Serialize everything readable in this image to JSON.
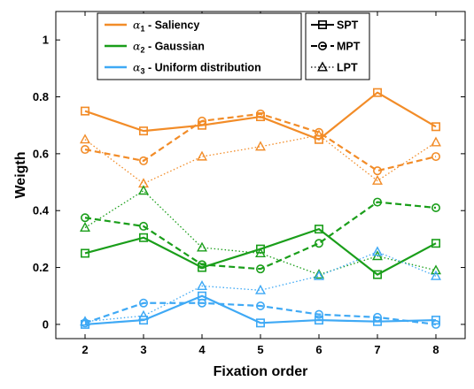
{
  "chart_data": {
    "type": "line",
    "title": "",
    "xlabel": "Fixation order",
    "ylabel": "Weigth",
    "x": [
      2,
      3,
      4,
      5,
      6,
      7,
      8
    ],
    "xlim": [
      1.5,
      8.5
    ],
    "ylim": [
      -0.05,
      1.1
    ],
    "x_ticks": [
      "2",
      "3",
      "4",
      "5",
      "6",
      "7",
      "8"
    ],
    "y_ticks": [
      {
        "value": 0,
        "label": "0"
      },
      {
        "value": 0.2,
        "label": "0.2"
      },
      {
        "value": 0.4,
        "label": "0.4"
      },
      {
        "value": 0.6,
        "label": "0.6"
      },
      {
        "value": 0.8,
        "label": "0.8"
      },
      {
        "value": 1,
        "label": "1"
      }
    ],
    "grid": false,
    "legend_alpha": {
      "placement": "top-left",
      "entries": [
        {
          "symbol": "α",
          "sub": "1",
          "text": " - Saliency",
          "color": "#F28C28"
        },
        {
          "symbol": "α",
          "sub": "2",
          "text": " - Gaussian",
          "color": "#1A9E1A"
        },
        {
          "symbol": "α",
          "sub": "3",
          "text": " - Uniform distribution",
          "color": "#3FA9F5"
        }
      ]
    },
    "legend_style": {
      "placement": "top-right",
      "entries": [
        {
          "label": "SPT",
          "dash": "solid",
          "marker": "square"
        },
        {
          "label": "MPT",
          "dash": "dashed",
          "marker": "circle"
        },
        {
          "label": "LPT",
          "dash": "dotted",
          "marker": "triangle"
        }
      ]
    },
    "series": [
      {
        "weight": "alpha1",
        "style": "SPT",
        "color": "#F28C28",
        "dash": "solid",
        "marker": "square",
        "values": [
          0.75,
          0.68,
          0.7,
          0.73,
          0.65,
          0.815,
          0.695
        ]
      },
      {
        "weight": "alpha1",
        "style": "MPT",
        "color": "#F28C28",
        "dash": "dashed",
        "marker": "circle",
        "values": [
          0.615,
          0.575,
          0.715,
          0.74,
          0.675,
          0.54,
          0.59
        ]
      },
      {
        "weight": "alpha1",
        "style": "LPT",
        "color": "#F28C28",
        "dash": "dotted",
        "marker": "triangle",
        "values": [
          0.65,
          0.495,
          0.59,
          0.625,
          0.665,
          0.505,
          0.64
        ]
      },
      {
        "weight": "alpha2",
        "style": "SPT",
        "color": "#1A9E1A",
        "dash": "solid",
        "marker": "square",
        "values": [
          0.25,
          0.305,
          0.2,
          0.265,
          0.335,
          0.175,
          0.285
        ]
      },
      {
        "weight": "alpha2",
        "style": "MPT",
        "color": "#1A9E1A",
        "dash": "dashed",
        "marker": "circle",
        "values": [
          0.375,
          0.345,
          0.21,
          0.195,
          0.285,
          0.43,
          0.41
        ]
      },
      {
        "weight": "alpha2",
        "style": "LPT",
        "color": "#1A9E1A",
        "dash": "dotted",
        "marker": "triangle",
        "values": [
          0.34,
          0.47,
          0.27,
          0.25,
          0.175,
          0.24,
          0.19
        ]
      },
      {
        "weight": "alpha3",
        "style": "SPT",
        "color": "#3FA9F5",
        "dash": "solid",
        "marker": "square",
        "values": [
          0.0,
          0.015,
          0.1,
          0.005,
          0.015,
          0.01,
          0.015
        ]
      },
      {
        "weight": "alpha3",
        "style": "MPT",
        "color": "#3FA9F5",
        "dash": "dashed",
        "marker": "circle",
        "values": [
          0.005,
          0.075,
          0.075,
          0.065,
          0.035,
          0.025,
          0.0
        ]
      },
      {
        "weight": "alpha3",
        "style": "LPT",
        "color": "#3FA9F5",
        "dash": "dotted",
        "marker": "triangle",
        "values": [
          0.01,
          0.03,
          0.135,
          0.12,
          0.17,
          0.255,
          0.17
        ]
      }
    ]
  }
}
